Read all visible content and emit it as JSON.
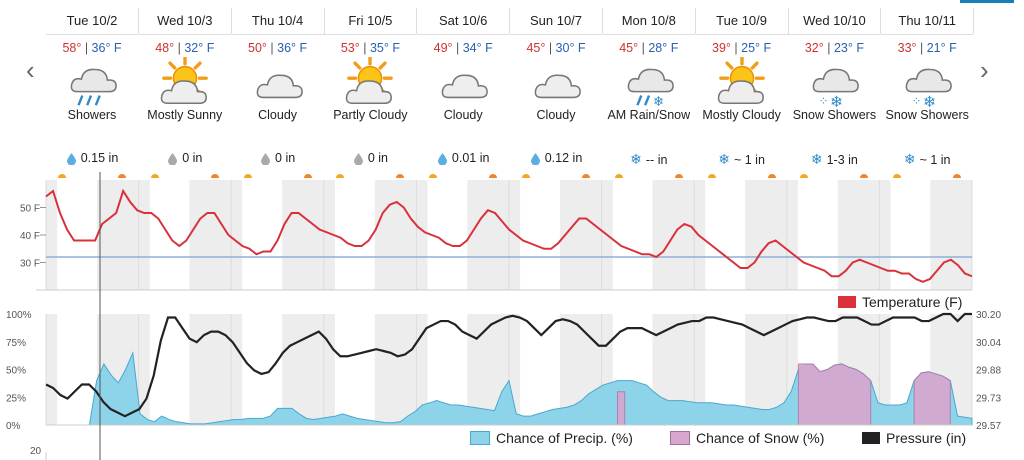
{
  "nav": {
    "prev_icon": "chevron-left-icon",
    "next_icon": "chevron-right-icon"
  },
  "days": [
    {
      "date": "Tue 10/2",
      "hi": "58°",
      "lo": "36° F",
      "icon": "rain-icon",
      "condition": "Showers",
      "precip_icon": "raindrop-icon",
      "precip": "0.15 in"
    },
    {
      "date": "Wed 10/3",
      "hi": "48°",
      "lo": "32° F",
      "icon": "sun-cloud-icon",
      "condition": "Mostly Sunny",
      "precip_icon": "raindrop-gray-icon",
      "precip": "0 in"
    },
    {
      "date": "Thu 10/4",
      "hi": "50°",
      "lo": "36° F",
      "icon": "cloud-icon",
      "condition": "Cloudy",
      "precip_icon": "raindrop-gray-icon",
      "precip": "0 in"
    },
    {
      "date": "Fri 10/5",
      "hi": "53°",
      "lo": "35° F",
      "icon": "sun-cloud-icon",
      "condition": "Partly Cloudy",
      "precip_icon": "raindrop-gray-icon",
      "precip": "0 in"
    },
    {
      "date": "Sat 10/6",
      "hi": "49°",
      "lo": "34° F",
      "icon": "cloud-icon",
      "condition": "Cloudy",
      "precip_icon": "raindrop-icon",
      "precip": "0.01 in"
    },
    {
      "date": "Sun 10/7",
      "hi": "45°",
      "lo": "30° F",
      "icon": "cloud-icon",
      "condition": "Cloudy",
      "precip_icon": "raindrop-icon",
      "precip": "0.12 in"
    },
    {
      "date": "Mon 10/8",
      "hi": "45°",
      "lo": "28° F",
      "icon": "rain-snow-icon",
      "condition": "AM Rain/Snow",
      "precip_icon": "snowflake-icon",
      "precip": "-- in"
    },
    {
      "date": "Tue 10/9",
      "hi": "39°",
      "lo": "25° F",
      "icon": "sun-cloud-icon",
      "condition": "Mostly Cloudy",
      "precip_icon": "snowflake-icon",
      "precip": "~ 1 in"
    },
    {
      "date": "Wed 10/10",
      "hi": "32°",
      "lo": "23° F",
      "icon": "snow-icon",
      "condition": "Snow Showers",
      "precip_icon": "snowflake-icon",
      "precip": "1-3 in"
    },
    {
      "date": "Thu 10/11",
      "hi": "33°",
      "lo": "21° F",
      "icon": "snow-icon",
      "condition": "Snow Showers",
      "precip_icon": "snowflake-icon",
      "precip": "~ 1 in"
    }
  ],
  "temp_chart": {
    "ticks": [
      "50 F",
      "40 F",
      "30 F"
    ],
    "legend": "Temperature (F)",
    "color": "#d9303a",
    "freezing_line_color": "#8fb0d8",
    "series": [
      54,
      56,
      48,
      42,
      38,
      38,
      38,
      38,
      44,
      46,
      48,
      56,
      52,
      49,
      48,
      48,
      46,
      42,
      38,
      36,
      38,
      42,
      46,
      48,
      48,
      44,
      40,
      38,
      36,
      35,
      33,
      34,
      34,
      38,
      44,
      48,
      48,
      46,
      44,
      42,
      41,
      40,
      39,
      37,
      36,
      36,
      38,
      42,
      48,
      51,
      52,
      50,
      46,
      43,
      41,
      40,
      39,
      37,
      36,
      36,
      38,
      42,
      46,
      49,
      48,
      45,
      42,
      40,
      38,
      37,
      36,
      35,
      35,
      37,
      40,
      43,
      46,
      46,
      44,
      42,
      40,
      38,
      36,
      35,
      34,
      33,
      33,
      32,
      34,
      38,
      42,
      44,
      43,
      40,
      38,
      36,
      34,
      32,
      30,
      28,
      28,
      30,
      34,
      37,
      38,
      36,
      34,
      32,
      30,
      29,
      28,
      27,
      25,
      25,
      27,
      30,
      31,
      30,
      29,
      28,
      27,
      27,
      26,
      26,
      24,
      23,
      24,
      27,
      30,
      31,
      29,
      26,
      25
    ],
    "freezing": 32
  },
  "precip_chart": {
    "left_ticks": [
      "100%",
      "75%",
      "50%",
      "25%",
      "0%"
    ],
    "right_ticks": [
      "30.20",
      "30.04",
      "29.88",
      "29.73",
      "29.57"
    ],
    "legend_precip": "Chance of Precip. (%)",
    "legend_snow": "Chance of Snow (%)",
    "legend_pressure": "Pressure (in)",
    "precip_color": "#8dd3ea",
    "snow_color": "#d8a6cf",
    "pressure_color": "#222222",
    "precip": [
      0,
      0,
      0,
      0,
      0,
      0,
      0,
      40,
      55,
      45,
      38,
      50,
      65,
      10,
      5,
      3,
      8,
      5,
      3,
      2,
      1,
      1,
      1,
      2,
      3,
      4,
      5,
      5,
      6,
      6,
      6,
      8,
      15,
      15,
      15,
      10,
      6,
      5,
      6,
      7,
      8,
      10,
      8,
      6,
      5,
      4,
      3,
      2,
      2,
      3,
      8,
      12,
      18,
      20,
      22,
      20,
      18,
      18,
      17,
      16,
      15,
      14,
      13,
      30,
      40,
      10,
      8,
      8,
      10,
      12,
      14,
      15,
      16,
      18,
      22,
      28,
      32,
      36,
      38,
      40,
      40,
      40,
      38,
      36,
      30,
      25,
      22,
      22,
      22,
      21,
      20,
      20,
      20,
      19,
      18,
      18,
      17,
      16,
      15,
      14,
      14,
      16,
      20,
      30,
      50,
      55,
      55,
      48,
      50,
      54,
      55,
      52,
      50,
      46,
      40,
      20,
      18,
      18,
      18,
      20,
      40,
      47,
      48,
      46,
      44,
      40,
      8,
      7,
      6
    ],
    "snow": [
      0,
      0,
      0,
      0,
      0,
      0,
      0,
      0,
      0,
      0,
      0,
      0,
      0,
      0,
      0,
      0,
      0,
      0,
      0,
      0,
      0,
      0,
      0,
      0,
      0,
      0,
      0,
      0,
      0,
      0,
      0,
      0,
      0,
      0,
      0,
      0,
      0,
      0,
      0,
      0,
      0,
      0,
      0,
      0,
      0,
      0,
      0,
      0,
      0,
      0,
      0,
      0,
      0,
      0,
      0,
      0,
      0,
      0,
      0,
      0,
      0,
      0,
      0,
      0,
      0,
      0,
      0,
      0,
      0,
      0,
      0,
      0,
      0,
      0,
      0,
      0,
      0,
      0,
      0,
      30,
      30,
      0,
      0,
      0,
      0,
      0,
      0,
      0,
      0,
      0,
      0,
      0,
      0,
      0,
      0,
      0,
      0,
      0,
      0,
      0,
      0,
      0,
      0,
      0,
      55,
      55,
      55,
      48,
      50,
      54,
      55,
      52,
      50,
      46,
      40,
      0,
      0,
      0,
      0,
      0,
      40,
      47,
      48,
      46,
      44,
      40,
      0,
      0,
      0
    ],
    "pressure": [
      29.8,
      29.78,
      29.74,
      29.72,
      29.76,
      29.8,
      29.8,
      29.76,
      29.7,
      29.66,
      29.64,
      29.62,
      29.64,
      29.66,
      29.72,
      29.85,
      30.05,
      30.18,
      30.18,
      30.12,
      30.06,
      30.04,
      30.08,
      30.1,
      30.1,
      30.08,
      30.04,
      29.98,
      29.92,
      29.88,
      29.86,
      29.87,
      29.92,
      29.98,
      30.02,
      30.04,
      30.06,
      30.08,
      30.1,
      30.06,
      30.0,
      29.96,
      29.96,
      29.97,
      29.98,
      29.99,
      30.0,
      29.99,
      29.98,
      29.96,
      29.97,
      30.0,
      30.06,
      30.12,
      30.14,
      30.16,
      30.16,
      30.14,
      30.1,
      30.08,
      30.06,
      30.1,
      30.14,
      30.16,
      30.18,
      30.19,
      30.18,
      30.16,
      30.12,
      30.08,
      30.12,
      30.16,
      30.17,
      30.16,
      30.14,
      30.1,
      30.06,
      30.02,
      30.02,
      30.06,
      30.1,
      30.12,
      30.12,
      30.12,
      30.1,
      30.08,
      30.1,
      30.12,
      30.14,
      30.15,
      30.16,
      30.16,
      30.18,
      30.18,
      30.17,
      30.16,
      30.15,
      30.14,
      30.12,
      30.1,
      30.08,
      30.1,
      30.12,
      30.14,
      30.16,
      30.17,
      30.18,
      30.18,
      30.17,
      30.16,
      30.16,
      30.18,
      30.18,
      30.18,
      30.16,
      30.14,
      30.14,
      30.16,
      30.18,
      30.18,
      30.18,
      30.18,
      30.16,
      30.16,
      30.18,
      30.2,
      30.2,
      30.16,
      30.2,
      30.2
    ]
  },
  "lower_chart": {
    "tick": "20"
  }
}
